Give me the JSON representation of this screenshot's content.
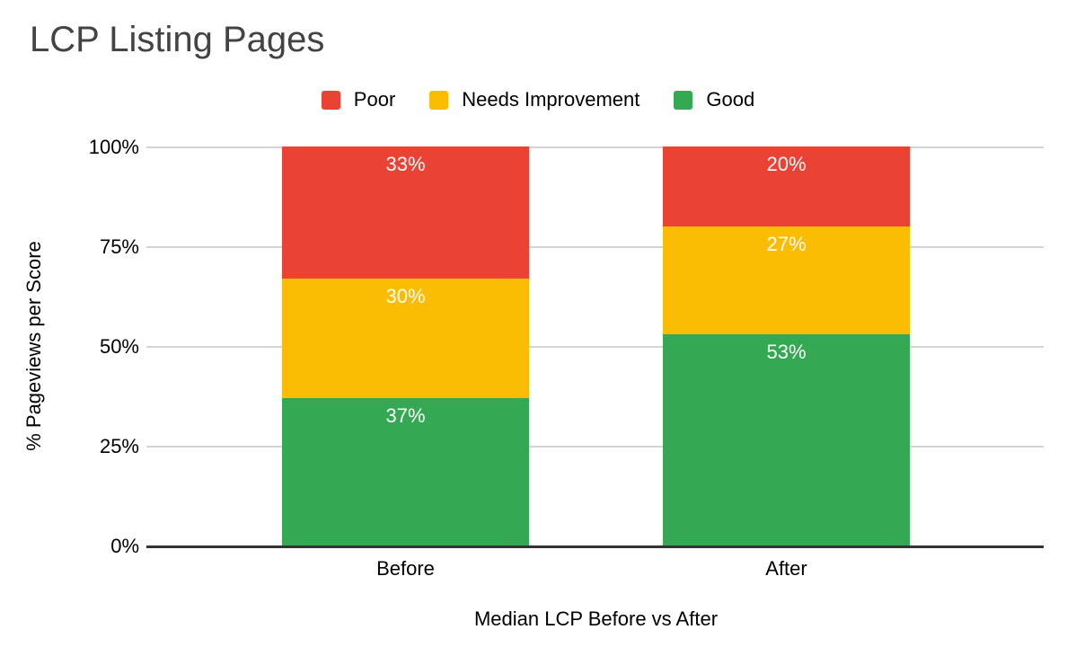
{
  "chart": {
    "title": "LCP Listing Pages",
    "xlabel": "Median LCP Before vs After",
    "ylabel": "% Pageviews per Score"
  },
  "chart_data": {
    "type": "bar",
    "stacked": true,
    "title": "LCP Listing Pages",
    "categories": [
      "Before",
      "After"
    ],
    "series": [
      {
        "name": "Poor",
        "color": "#EA4335",
        "values": [
          33,
          20
        ]
      },
      {
        "name": "Needs Improvement",
        "color": "#FBBC04",
        "values": [
          30,
          27
        ]
      },
      {
        "name": "Good",
        "color": "#34A853",
        "values": [
          37,
          53
        ]
      }
    ],
    "data_labels": {
      "format": "{value}%",
      "color": "#ffffff"
    },
    "xlabel": "Median LCP Before vs After",
    "ylabel": "% Pageviews per Score",
    "ylim": [
      0,
      100
    ],
    "yticks": [
      {
        "value": 100,
        "label": "100%"
      },
      {
        "value": 75,
        "label": "75%"
      },
      {
        "value": 50,
        "label": "50%"
      },
      {
        "value": 25,
        "label": "25%"
      },
      {
        "value": 0,
        "label": "0%"
      }
    ],
    "legend_position": "top",
    "grid": true
  }
}
